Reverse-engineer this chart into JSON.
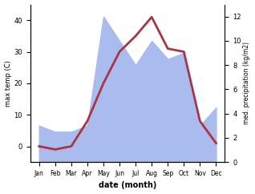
{
  "months": [
    "Jan",
    "Feb",
    "Mar",
    "Apr",
    "May",
    "Jun",
    "Jul",
    "Aug",
    "Sep",
    "Oct",
    "Nov",
    "Dec"
  ],
  "temp_max": [
    0,
    -1,
    0,
    8,
    20,
    30,
    35,
    41,
    31,
    30,
    8,
    1
  ],
  "precipitation": [
    3.0,
    2.5,
    2.5,
    3.0,
    12.0,
    10.0,
    8.0,
    10.0,
    8.5,
    9.0,
    3.0,
    4.5
  ],
  "temp_color": "#aa3344",
  "precip_color": "#aabbee",
  "precip_edge_color": "#8899cc",
  "left_ylabel": "max temp (C)",
  "right_ylabel": "med. precipitation (kg/m2)",
  "xlabel": "date (month)",
  "temp_ylim": [
    -5,
    45
  ],
  "precip_ylim": [
    0,
    13
  ],
  "temp_yticks": [
    0,
    10,
    20,
    30,
    40
  ],
  "precip_yticks": [
    0,
    2,
    4,
    6,
    8,
    10,
    12
  ],
  "bg_color": "#ffffff",
  "fig_bg_color": "#ffffff"
}
